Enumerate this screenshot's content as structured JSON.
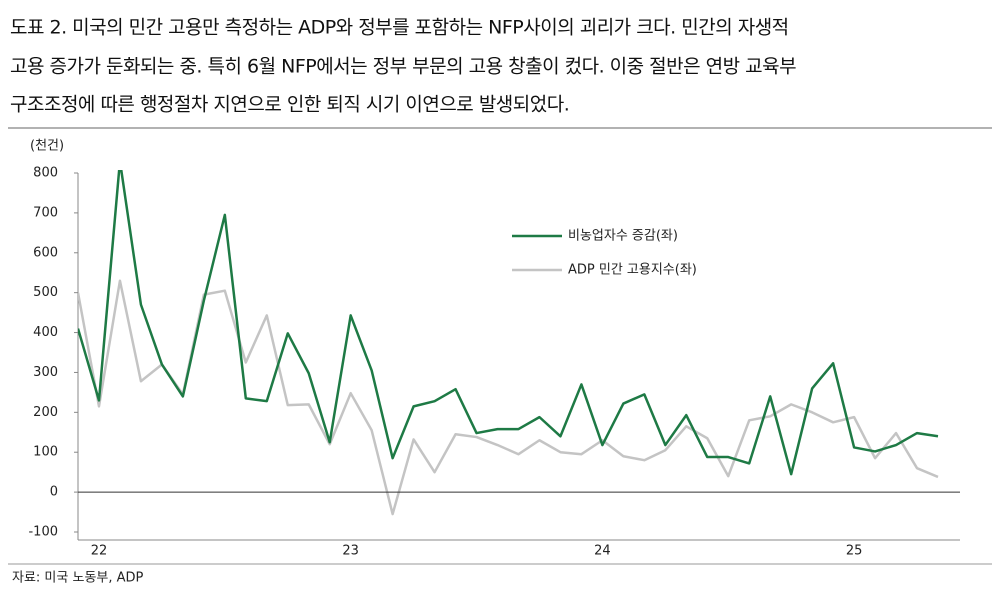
{
  "chart_data": {
    "type": "line",
    "title": [
      "도표 2. 미국의 민간 고용만 측정하는 ADP와 정부를 포함하는 NFP사이의 괴리가 크다. 민간의 자생적",
      "고용 증가가 둔화되는 중. 특히 6월 NFP에서는 정부 부문의 고용 창출이 컸다. 이중 절반은 연방 교육부",
      "구조조정에 따른 행정절차 지연으로 인한 퇴직 시기 이연으로 발생되었다."
    ],
    "y_label": "(천건)",
    "source": "자료: 미국 노동부, ADP",
    "categories": [
      null,
      "22",
      null,
      null,
      null,
      null,
      null,
      null,
      null,
      null,
      null,
      null,
      null,
      "23",
      null,
      null,
      null,
      null,
      null,
      null,
      null,
      null,
      null,
      null,
      null,
      "24",
      null,
      null,
      null,
      null,
      null,
      null,
      null,
      null,
      null,
      null,
      null,
      "25",
      null,
      null,
      null,
      null
    ],
    "series": [
      {
        "name": "비농업자수 증감(좌)",
        "color": "#1e7a45",
        "values": [
          410,
          230,
          830,
          470,
          320,
          240,
          480,
          695,
          235,
          228,
          398,
          298,
          125,
          443,
          305,
          85,
          215,
          228,
          258,
          148,
          158,
          158,
          188,
          140,
          270,
          118,
          222,
          245,
          118,
          193,
          88,
          88,
          72,
          240,
          45,
          260,
          323,
          112,
          102,
          118,
          148,
          140
        ]
      },
      {
        "name": "ADP 민간 고용지수(좌)",
        "color": "#c4c4c4",
        "values": [
          500,
          215,
          530,
          278,
          320,
          245,
          495,
          505,
          325,
          443,
          218,
          220,
          120,
          248,
          155,
          -55,
          132,
          50,
          145,
          138,
          118,
          95,
          130,
          100,
          95,
          130,
          90,
          80,
          105,
          165,
          135,
          40,
          180,
          190,
          220,
          200,
          175,
          188,
          85,
          148,
          60,
          38
        ]
      }
    ],
    "ylim": [
      -100,
      800
    ],
    "yticks": [
      -100,
      0,
      100,
      200,
      300,
      400,
      500,
      600,
      700,
      800
    ],
    "legend": "upper right"
  }
}
